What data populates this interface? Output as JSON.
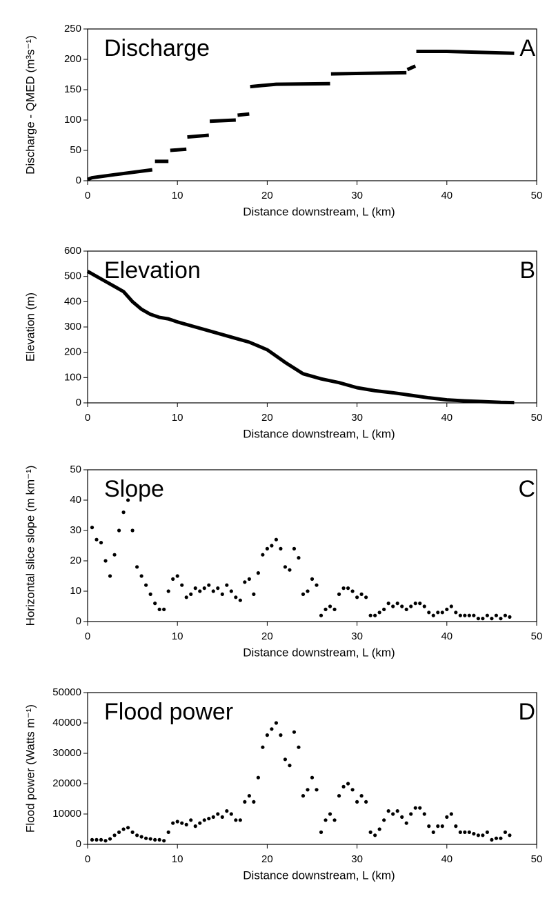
{
  "chart_data": [
    {
      "type": "line",
      "title": "Discharge",
      "panel_label": "A",
      "xlabel": "Distance downstream, L (km)",
      "ylabel": "Discharge - QMED (m³s⁻¹)",
      "color": "#000000",
      "x": [
        0,
        0.5,
        3,
        7.2,
        7.35,
        7.5,
        9,
        9.1,
        9.2,
        11,
        11.0,
        11.1,
        13.5,
        13.5,
        13.6,
        16.5,
        16.6,
        16.7,
        18,
        18.0,
        18.1,
        21,
        27,
        27.0,
        27.1,
        35.5,
        35.5,
        35.6,
        36.5,
        36.5,
        36.6,
        40,
        47.5
      ],
      "values": [
        2,
        5,
        10,
        18,
        null,
        32,
        32,
        null,
        50,
        52,
        null,
        72,
        75,
        null,
        98,
        100,
        null,
        108,
        110,
        null,
        155,
        159,
        160,
        null,
        176,
        178,
        null,
        183,
        189,
        null,
        213,
        213,
        210
      ],
      "xlim": [
        0,
        50
      ],
      "xticks": [
        0,
        10,
        20,
        30,
        40,
        50
      ],
      "ylim": [
        0,
        250
      ],
      "yticks": [
        0,
        50,
        100,
        150,
        200,
        250
      ]
    },
    {
      "type": "line",
      "title": "Elevation",
      "panel_label": "B",
      "xlabel": "Distance downstream, L (km)",
      "ylabel": "Elevation (m)",
      "color": "#000000",
      "x": [
        0,
        1,
        2,
        3,
        4,
        5,
        6,
        7,
        8,
        9,
        10,
        12,
        14,
        16,
        18,
        20,
        22,
        24,
        26,
        28,
        30,
        32,
        34,
        36,
        38,
        40,
        42,
        44,
        46,
        47.5
      ],
      "values": [
        520,
        500,
        480,
        460,
        440,
        400,
        370,
        350,
        338,
        332,
        320,
        300,
        280,
        260,
        240,
        210,
        160,
        115,
        95,
        80,
        60,
        48,
        40,
        30,
        20,
        12,
        8,
        5,
        2,
        1
      ],
      "xlim": [
        0,
        50
      ],
      "xticks": [
        0,
        10,
        20,
        30,
        40,
        50
      ],
      "ylim": [
        0,
        600
      ],
      "yticks": [
        0,
        100,
        200,
        300,
        400,
        500,
        600
      ]
    },
    {
      "type": "scatter",
      "title": "Slope",
      "panel_label": "C",
      "xlabel": "Distance downstream, L (km)",
      "ylabel": "Horizontal slice slope (m km⁻¹)",
      "color": "#000000",
      "x": [
        0.5,
        1,
        1.5,
        2,
        2.5,
        3,
        3.5,
        4,
        4.5,
        5,
        5.5,
        6,
        6.5,
        7,
        7.5,
        8,
        8.5,
        9,
        9.5,
        10,
        10.5,
        11,
        11.5,
        12,
        12.5,
        13,
        13.5,
        14,
        14.5,
        15,
        15.5,
        16,
        16.5,
        17,
        17.5,
        18,
        18.5,
        19,
        19.5,
        20,
        20.5,
        21,
        21.5,
        22,
        22.5,
        23,
        23.5,
        24,
        24.5,
        25,
        25.5,
        26,
        26.5,
        27,
        27.5,
        28,
        28.5,
        29,
        29.5,
        30,
        30.5,
        31,
        31.5,
        32,
        32.5,
        33,
        33.5,
        34,
        34.5,
        35,
        35.5,
        36,
        36.5,
        37,
        37.5,
        38,
        38.5,
        39,
        39.5,
        40,
        40.5,
        41,
        41.5,
        42,
        42.5,
        43,
        43.5,
        44,
        44.5,
        45,
        45.5,
        46,
        46.5,
        47
      ],
      "values": [
        31,
        27,
        26,
        20,
        15,
        22,
        30,
        36,
        40,
        30,
        18,
        15,
        12,
        9,
        6,
        4,
        4,
        10,
        14,
        15,
        12,
        8,
        9,
        11,
        10,
        11,
        12,
        10,
        11,
        9,
        12,
        10,
        8,
        7,
        13,
        14,
        9,
        16,
        22,
        24,
        25,
        27,
        24,
        18,
        17,
        24,
        21,
        9,
        10,
        14,
        12,
        2,
        4,
        5,
        4,
        9,
        11,
        11,
        10,
        8,
        9,
        8,
        2,
        2,
        3,
        4,
        6,
        5,
        6,
        5,
        4,
        5,
        6,
        6,
        5,
        3,
        2,
        3,
        3,
        4,
        5,
        3,
        2,
        2,
        2,
        2,
        1,
        1,
        2,
        1,
        2,
        1,
        2,
        1.5
      ],
      "xlim": [
        0,
        50
      ],
      "xticks": [
        0,
        10,
        20,
        30,
        40,
        50
      ],
      "ylim": [
        0,
        50
      ],
      "yticks": [
        0,
        10,
        20,
        30,
        40,
        50
      ]
    },
    {
      "type": "scatter",
      "title": "Flood power",
      "panel_label": "D",
      "xlabel": "Distance downstream, L (km)",
      "ylabel": "Flood power (Watts m⁻¹)",
      "color": "#000000",
      "x": [
        0.5,
        1,
        1.5,
        2,
        2.5,
        3,
        3.5,
        4,
        4.5,
        5,
        5.5,
        6,
        6.5,
        7,
        7.5,
        8,
        8.5,
        9,
        9.5,
        10,
        10.5,
        11,
        11.5,
        12,
        12.5,
        13,
        13.5,
        14,
        14.5,
        15,
        15.5,
        16,
        16.5,
        17,
        17.5,
        18,
        18.5,
        19,
        19.5,
        20,
        20.5,
        21,
        21.5,
        22,
        22.5,
        23,
        23.5,
        24,
        24.5,
        25,
        25.5,
        26,
        26.5,
        27,
        27.5,
        28,
        28.5,
        29,
        29.5,
        30,
        30.5,
        31,
        31.5,
        32,
        32.5,
        33,
        33.5,
        34,
        34.5,
        35,
        35.5,
        36,
        36.5,
        37,
        37.5,
        38,
        38.5,
        39,
        39.5,
        40,
        40.5,
        41,
        41.5,
        42,
        42.5,
        43,
        43.5,
        44,
        44.5,
        45,
        45.5,
        46,
        46.5,
        47
      ],
      "values": [
        1500,
        1500,
        1500,
        1200,
        1800,
        3000,
        4000,
        5000,
        5500,
        4000,
        3000,
        2500,
        2000,
        1800,
        1500,
        1500,
        1200,
        4000,
        7000,
        7500,
        7000,
        6500,
        8000,
        6000,
        7000,
        8000,
        8500,
        9000,
        10000,
        9000,
        11000,
        10000,
        8000,
        8000,
        14000,
        16000,
        14000,
        22000,
        32000,
        36000,
        38000,
        40000,
        36000,
        28000,
        26000,
        37000,
        32000,
        16000,
        18000,
        22000,
        18000,
        4000,
        8000,
        10000,
        8000,
        16000,
        19000,
        20000,
        18000,
        14000,
        16000,
        14000,
        4000,
        3000,
        5000,
        8000,
        11000,
        10000,
        11000,
        9000,
        7000,
        10000,
        12000,
        12000,
        10000,
        6000,
        4000,
        6000,
        6000,
        9000,
        10000,
        6000,
        4000,
        4000,
        4000,
        3500,
        3000,
        3000,
        4000,
        1500,
        2000,
        2000,
        4000,
        3000
      ],
      "xlim": [
        0,
        50
      ],
      "xticks": [
        0,
        10,
        20,
        30,
        40,
        50
      ],
      "ylim": [
        0,
        50000
      ],
      "yticks": [
        0,
        10000,
        20000,
        30000,
        40000,
        50000
      ]
    }
  ]
}
